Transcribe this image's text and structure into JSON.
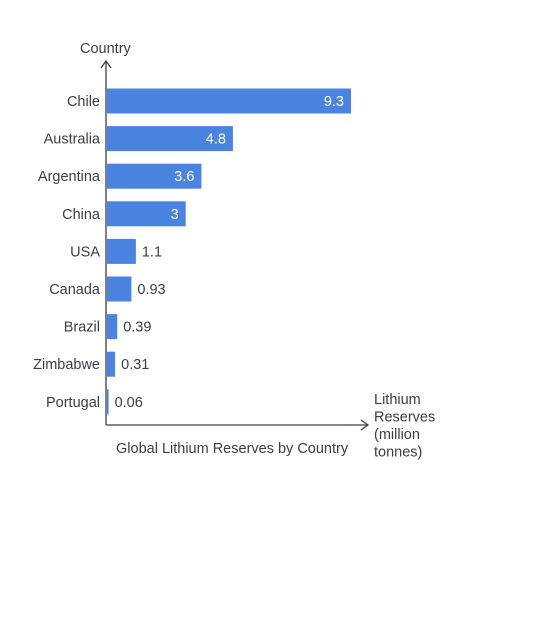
{
  "chart_data": {
    "type": "bar",
    "orientation": "horizontal",
    "title": "Global Lithium Reserves by Country",
    "ylabel": "Country",
    "xlabel_lines": [
      "Lithium",
      "Reserves",
      "(million",
      "tonnes)"
    ],
    "categories": [
      "Chile",
      "Australia",
      "Argentina",
      "China",
      "USA",
      "Canada",
      "Brazil",
      "Zimbabwe",
      "Portugal"
    ],
    "values": [
      9.3,
      4.8,
      3.6,
      3,
      1.1,
      0.93,
      0.39,
      0.31,
      0.06
    ],
    "value_labels": [
      "9.3",
      "4.8",
      "3.6",
      "3",
      "1.1",
      "0.93",
      "0.39",
      "0.31",
      "0.06"
    ],
    "xlim": [
      0,
      10
    ],
    "bar_color": "#4a84e0",
    "grid": false,
    "legend": "none"
  }
}
